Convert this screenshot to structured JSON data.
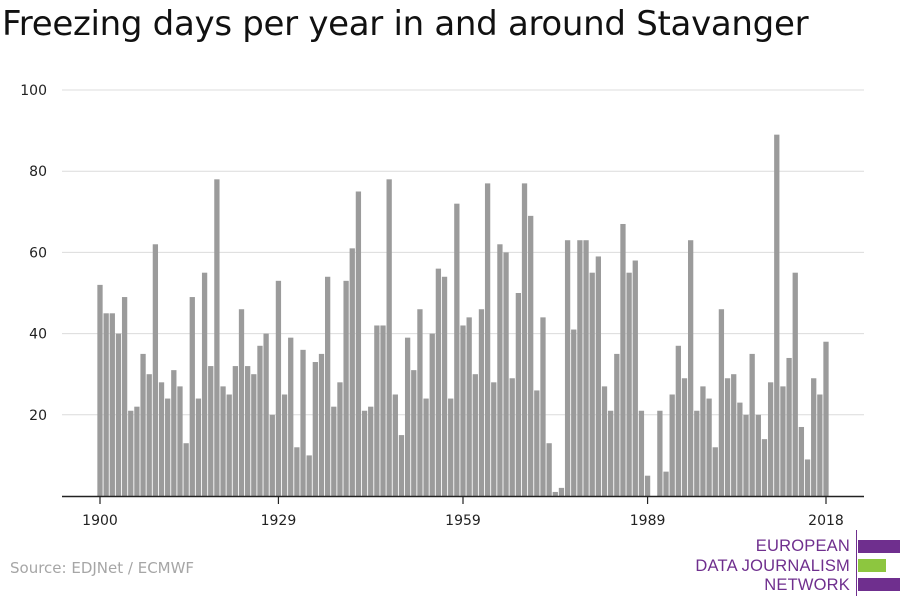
{
  "chart_data": {
    "type": "bar",
    "title": "Freezing days per year in and around Stavanger",
    "xlabel": "",
    "ylabel": "",
    "x": [
      1900,
      1901,
      1902,
      1903,
      1904,
      1905,
      1906,
      1907,
      1908,
      1909,
      1910,
      1911,
      1912,
      1913,
      1914,
      1915,
      1916,
      1917,
      1918,
      1919,
      1920,
      1921,
      1922,
      1923,
      1924,
      1925,
      1926,
      1927,
      1928,
      1929,
      1930,
      1931,
      1932,
      1933,
      1934,
      1935,
      1936,
      1937,
      1938,
      1939,
      1940,
      1941,
      1942,
      1943,
      1944,
      1945,
      1946,
      1947,
      1948,
      1949,
      1950,
      1951,
      1952,
      1953,
      1954,
      1955,
      1956,
      1957,
      1958,
      1959,
      1960,
      1961,
      1962,
      1963,
      1964,
      1965,
      1966,
      1967,
      1968,
      1969,
      1970,
      1971,
      1972,
      1973,
      1974,
      1975,
      1976,
      1977,
      1978,
      1979,
      1980,
      1981,
      1982,
      1983,
      1984,
      1985,
      1986,
      1987,
      1988,
      1989,
      1990,
      1991,
      1992,
      1993,
      1994,
      1995,
      1996,
      1997,
      1998,
      1999,
      2000,
      2001,
      2002,
      2003,
      2004,
      2005,
      2006,
      2007,
      2008,
      2009,
      2010,
      2011,
      2012,
      2013,
      2014,
      2015,
      2016,
      2017,
      2018
    ],
    "values": [
      52,
      45,
      45,
      40,
      49,
      21,
      22,
      35,
      30,
      62,
      28,
      24,
      31,
      27,
      13,
      49,
      24,
      55,
      32,
      78,
      27,
      25,
      32,
      46,
      32,
      30,
      37,
      40,
      20,
      53,
      25,
      39,
      12,
      36,
      10,
      33,
      35,
      54,
      22,
      28,
      53,
      61,
      75,
      21,
      22,
      42,
      42,
      78,
      25,
      15,
      39,
      31,
      46,
      24,
      40,
      56,
      54,
      24,
      72,
      42,
      44,
      30,
      46,
      77,
      28,
      62,
      60,
      29,
      50,
      77,
      69,
      26,
      44,
      13,
      1,
      2,
      63,
      41,
      63,
      63,
      55,
      59,
      27,
      21,
      35,
      67,
      55,
      58,
      21,
      5,
      0,
      21,
      6,
      25,
      37,
      29,
      63,
      21,
      27,
      24,
      12,
      46,
      29,
      30,
      23,
      20,
      35,
      20,
      14,
      28,
      89,
      27,
      34,
      55,
      17,
      9,
      29,
      25,
      38
    ],
    "ylim": [
      0,
      100
    ],
    "yticks": [
      20,
      40,
      60,
      80,
      100
    ],
    "xtick_labels": [
      "1900",
      "1929",
      "1959",
      "1989",
      "2018"
    ],
    "xtick_years": [
      1900,
      1929,
      1959,
      1989,
      2018
    ],
    "bar_color": "#9b9b9b",
    "grid": true
  },
  "source": "Source: EDJNet / ECMWF",
  "logo": {
    "lines": [
      "EUROPEAN",
      "DATA JOURNALISM",
      "NETWORK"
    ],
    "color": "#6f2f8e",
    "accent_color": "#8dc63f"
  }
}
